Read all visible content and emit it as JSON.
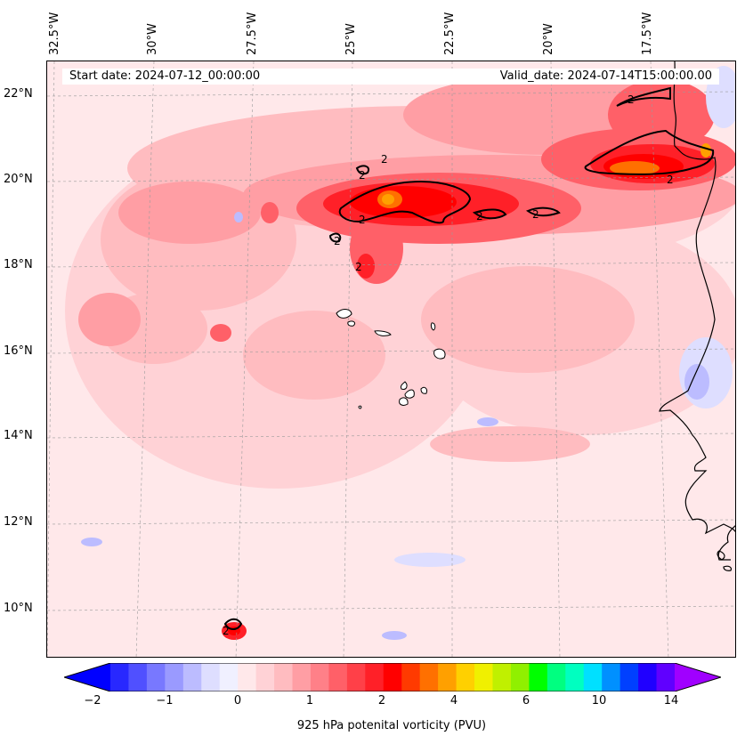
{
  "start_date": "Start date: 2024-07-12_00:00:00",
  "valid_date": "Valid_date: 2024-07-14T15:00:00.00",
  "longitude_labels": [
    "32.5°W",
    "30°W",
    "27.5°W",
    "25°W",
    "22.5°W",
    "20°W",
    "17.5°W"
  ],
  "latitude_labels": [
    "22°N",
    "20°N",
    "18°N",
    "16°N",
    "14°N",
    "12°N",
    "10°N"
  ],
  "colorbar": {
    "label": "925 hPa potenital vorticity (PVU)",
    "tick_labels": [
      "−2",
      "−1",
      "0",
      "1",
      "2",
      "4",
      "6",
      "10",
      "14"
    ],
    "colors": [
      "#0000ff",
      "#2828ff",
      "#5050ff",
      "#7878ff",
      "#9a9aff",
      "#bcbcff",
      "#dedeff",
      "#f0f0ff",
      "#ffe8ea",
      "#ffd2d6",
      "#ffbcc0",
      "#ff9ea4",
      "#ff8088",
      "#ff6068",
      "#ff4048",
      "#ff2028",
      "#ff0000",
      "#ff3a00",
      "#ff7000",
      "#ffa000",
      "#ffd000",
      "#f0f000",
      "#c0f000",
      "#90f000",
      "#00ff00",
      "#00ff80",
      "#00ffc0",
      "#00e0ff",
      "#0090ff",
      "#0040ff",
      "#2000ff",
      "#6000ff",
      "#a000ff"
    ]
  },
  "contour_label": "2",
  "map_colors": {
    "background": "#ffe8ea",
    "light_pink": "#ffd2d6",
    "pink": "#ffbcc0",
    "salmon": "#ff9ea4",
    "red_light": "#ff6068",
    "red": "#ff2028",
    "red_deep": "#ff0000",
    "orange": "#ff7000",
    "yellow": "#ffa000",
    "blue_light": "#dedeff",
    "blue": "#bcbcff",
    "blue_mid": "#9a9aff"
  }
}
